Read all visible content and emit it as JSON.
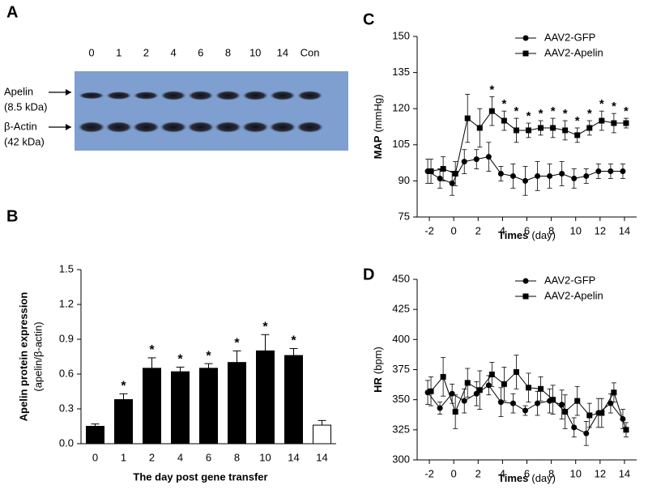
{
  "blot": {
    "panel": "A",
    "lanes": [
      "0",
      "1",
      "2",
      "4",
      "6",
      "8",
      "10",
      "14",
      "Con"
    ],
    "bands": [
      {
        "name": "Apelin",
        "size": "(8.5 kDa)"
      },
      {
        "name": "β-Actin",
        "size": "(42 kDa)"
      }
    ]
  },
  "chart_data": [
    {
      "type": "bar",
      "panel": "B",
      "ylabel": "Apelin protein expression",
      "ylabel_sub": "(apelin/β-actin)",
      "xlabel": "The day post gene transfer",
      "categories": [
        "0",
        "1",
        "2",
        "4",
        "6",
        "8",
        "10",
        "14",
        "14"
      ],
      "values": [
        0.15,
        0.38,
        0.65,
        0.62,
        0.65,
        0.7,
        0.8,
        0.76,
        0.16
      ],
      "errors": [
        0.02,
        0.05,
        0.09,
        0.04,
        0.04,
        0.1,
        0.14,
        0.06,
        0.04
      ],
      "significance": [
        null,
        "*",
        "*",
        "*",
        "*",
        "*",
        "*",
        "*",
        null
      ],
      "colors": [
        "#000000",
        "#000000",
        "#000000",
        "#000000",
        "#000000",
        "#000000",
        "#000000",
        "#000000",
        "#ffffff"
      ],
      "ylim": [
        0,
        1.5
      ],
      "yticks": [
        {
          "value": 0,
          "label": "0.0"
        },
        0.3,
        0.6,
        0.9,
        1.2,
        1.5
      ]
    },
    {
      "type": "line",
      "panel": "C",
      "ylabel": "MAP",
      "ylabel_unit": "(mmHg)",
      "xlabel": "Times",
      "xlabel_unit": "(day)",
      "legend": "top-right",
      "x": [
        -2,
        -1,
        0,
        1,
        2,
        3,
        4,
        5,
        6,
        7,
        8,
        9,
        10,
        11,
        12,
        13,
        14
      ],
      "xlim": [
        -3,
        15
      ],
      "xticks": [
        -2,
        0,
        2,
        4,
        6,
        8,
        10,
        12,
        14
      ],
      "ylim": [
        75,
        150
      ],
      "yticks": [
        75,
        90,
        105,
        120,
        135,
        150
      ],
      "series": [
        {
          "name": "AAV2-GFP",
          "color": "#000000",
          "marker": "circle",
          "values": [
            94,
            91,
            89,
            98,
            99,
            100,
            93,
            92,
            90,
            92,
            92,
            93,
            91,
            92,
            94,
            94,
            94
          ],
          "errors": [
            5,
            4,
            5,
            5,
            4,
            6,
            3,
            5,
            6,
            6,
            5,
            5,
            4,
            3,
            3,
            3,
            3
          ]
        },
        {
          "name": "AAV2-Apelin",
          "color": "#000000",
          "marker": "square",
          "values": [
            94,
            95,
            93,
            116,
            112,
            119,
            115,
            111,
            111,
            112,
            112,
            111,
            109,
            112,
            115,
            114,
            114
          ],
          "errors": [
            5,
            5,
            5,
            10,
            8,
            6,
            4,
            5,
            3,
            3,
            4,
            4,
            3,
            3,
            4,
            4,
            2
          ],
          "significance": [
            null,
            null,
            null,
            null,
            null,
            "*",
            "*",
            "*",
            "*",
            "*",
            "*",
            "*",
            "*",
            "*",
            "*",
            "*",
            "*"
          ]
        }
      ]
    },
    {
      "type": "line",
      "panel": "D",
      "ylabel": "HR",
      "ylabel_unit": "(bpm)",
      "xlabel": "Times",
      "xlabel_unit": "(day)",
      "legend": "top-right",
      "x": [
        -2,
        -1,
        0,
        1,
        2,
        3,
        4,
        5,
        6,
        7,
        8,
        9,
        10,
        11,
        12,
        13,
        14
      ],
      "xlim": [
        -3,
        15
      ],
      "xticks": [
        -2,
        0,
        2,
        4,
        6,
        8,
        10,
        12,
        14
      ],
      "ylim": [
        300,
        450
      ],
      "yticks": [
        300,
        325,
        350,
        375,
        400,
        425,
        450
      ],
      "series": [
        {
          "name": "AAV2-GFP",
          "color": "#000000",
          "marker": "circle",
          "values": [
            356,
            343,
            355,
            349,
            355,
            362,
            348,
            347,
            341,
            347,
            349,
            346,
            327,
            322,
            339,
            347,
            334
          ],
          "errors": [
            10,
            5,
            8,
            10,
            10,
            8,
            12,
            8,
            4,
            10,
            10,
            12,
            8,
            10,
            12,
            8,
            8
          ]
        },
        {
          "name": "AAV2-Apelin",
          "color": "#000000",
          "marker": "square",
          "values": [
            357,
            369,
            340,
            364,
            358,
            371,
            363,
            373,
            360,
            359,
            350,
            340,
            349,
            337,
            339,
            356,
            325
          ],
          "errors": [
            12,
            16,
            14,
            12,
            16,
            10,
            14,
            14,
            12,
            10,
            12,
            14,
            12,
            10,
            12,
            8,
            6
          ]
        }
      ]
    }
  ]
}
